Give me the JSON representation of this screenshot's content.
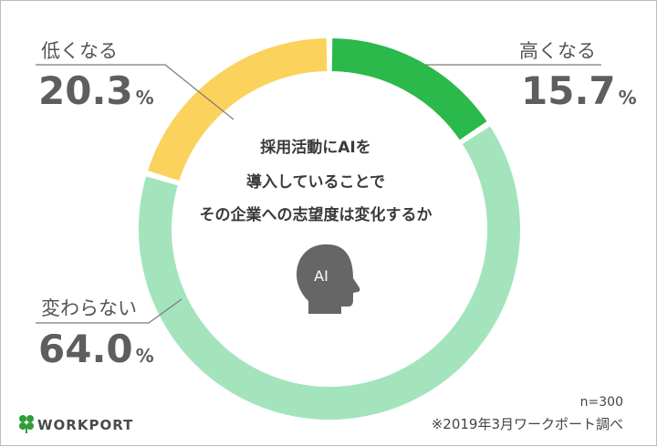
{
  "colors": {
    "high": "#2ab94a",
    "low": "#fbd25c",
    "same": "#a3e4bd",
    "text": "#5e5e5e",
    "head_icon": "#666666",
    "brand_green": "#2f9c3a"
  },
  "chart_data": {
    "type": "pie",
    "donut": true,
    "categories": [
      "高くなる",
      "変わらない",
      "低くなる"
    ],
    "values": [
      15.7,
      64.0,
      20.3
    ],
    "value_texts": [
      "15.7",
      "64.0",
      "20.3"
    ],
    "unit": "%",
    "start": "top",
    "direction": "clockwise",
    "center_lines": [
      "採用活動にAIを",
      "導入していることで",
      "その企業への志望度は変化するか"
    ],
    "center_icon_label": "AI"
  },
  "notes": {
    "n": "n=300",
    "source": "※2019年3月ワークポート調べ"
  },
  "brand": {
    "name": "WORKPORT",
    "icon": "clover-icon"
  }
}
